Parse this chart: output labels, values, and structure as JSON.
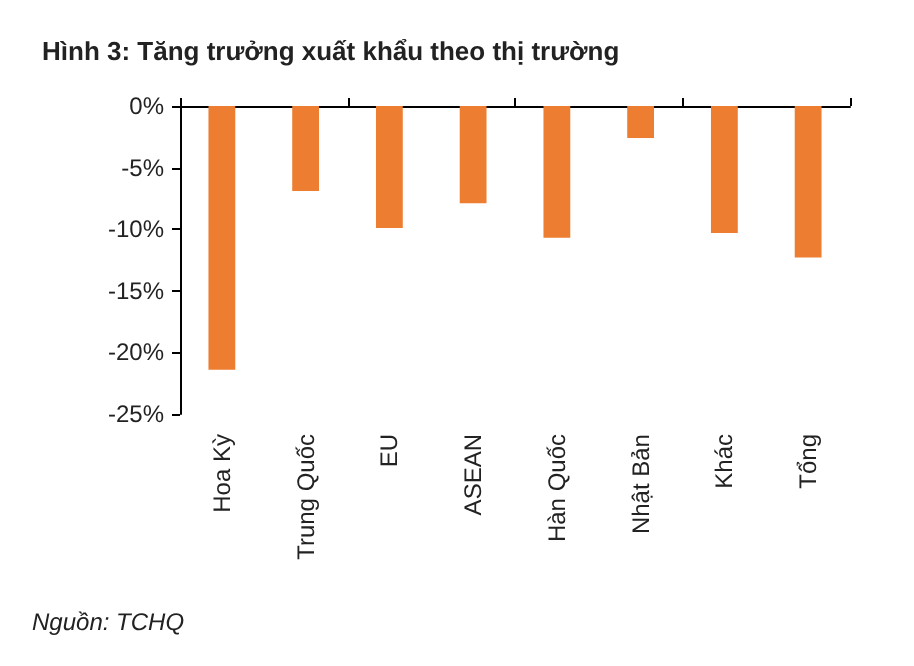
{
  "chart_data": {
    "type": "bar",
    "title": "Hình 3: Tăng trưởng xuất khẩu theo thị trường",
    "categories": [
      "Hoa Kỳ",
      "Trung Quốc",
      "EU",
      "ASEAN",
      "Hàn Quốc",
      "Nhật Bản",
      "Khác",
      "Tổng"
    ],
    "values": [
      -21.4,
      -6.9,
      -9.9,
      -7.9,
      -10.7,
      -2.6,
      -10.3,
      -12.3
    ],
    "color": "#ed7d31",
    "ylim": [
      -25,
      0
    ],
    "yticks": [
      {
        "value": -25,
        "label": "-25%"
      },
      {
        "value": -20,
        "label": "-20%"
      },
      {
        "value": -15,
        "label": "-15%"
      },
      {
        "value": -10,
        "label": "-10%"
      },
      {
        "value": -5,
        "label": "-5%"
      },
      {
        "value": 0,
        "label": "0%"
      }
    ],
    "grid": false,
    "annotations": [
      "Nguồn: TCHQ"
    ]
  }
}
